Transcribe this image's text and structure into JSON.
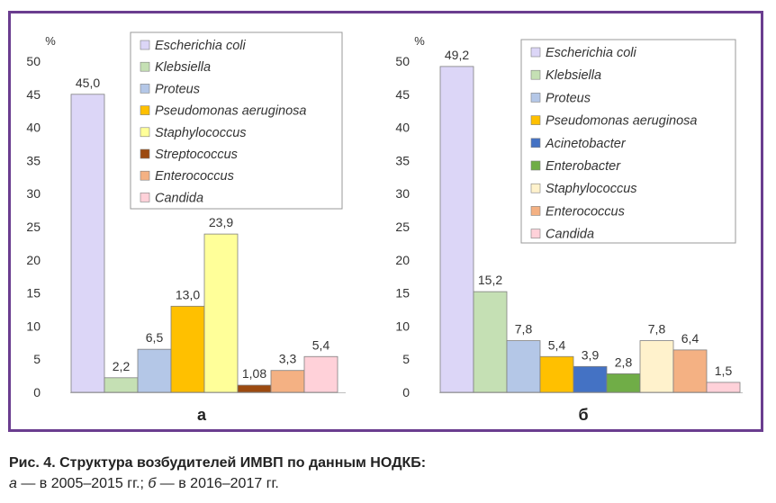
{
  "chart_data": [
    {
      "type": "bar",
      "panel_label": "а",
      "ylabel": "%",
      "ylim": [
        0,
        50
      ],
      "yticks": [
        0,
        5,
        10,
        15,
        20,
        25,
        30,
        35,
        40,
        45,
        50
      ],
      "legend": "top-right",
      "grid": false,
      "categories": [
        "Escherichia coli",
        "Klebsiella",
        "Proteus",
        "Pseudomonas aeruginosa",
        "Staphylococcus",
        "Streptococcus",
        "Enterococcus",
        "Candida"
      ],
      "values": [
        45.0,
        2.2,
        6.5,
        13.0,
        23.9,
        1.08,
        3.3,
        5.4
      ],
      "value_labels": [
        "45,0",
        "2,2",
        "6,5",
        "13,0",
        "23,9",
        "1,08",
        "3,3",
        "5,4"
      ],
      "colors": [
        "#dcd6f7",
        "#c5e0b4",
        "#b4c7e7",
        "#ffc000",
        "#ffff99",
        "#9c4a10",
        "#f4b183",
        "#ffd1d9"
      ]
    },
    {
      "type": "bar",
      "panel_label": "б",
      "ylabel": "%",
      "ylim": [
        0,
        50
      ],
      "yticks": [
        0,
        5,
        10,
        15,
        20,
        25,
        30,
        35,
        40,
        45,
        50
      ],
      "legend": "top-right",
      "grid": false,
      "categories": [
        "Escherichia coli",
        "Klebsiella",
        "Proteus",
        "Pseudomonas aeruginosa",
        "Acinetobacter",
        "Enterobacter",
        "Staphylococcus",
        "Enterococcus",
        "Candida"
      ],
      "values": [
        49.2,
        15.2,
        7.8,
        5.4,
        3.9,
        2.8,
        7.8,
        6.4,
        1.5
      ],
      "value_labels": [
        "49,2",
        "15,2",
        "7,8",
        "5,4",
        "3,9",
        "2,8",
        "7,8",
        "6,4",
        "1,5"
      ],
      "colors": [
        "#dcd6f7",
        "#c5e0b4",
        "#b4c7e7",
        "#ffc000",
        "#4472c4",
        "#70ad47",
        "#fff2cc",
        "#f4b183",
        "#ffd1d9"
      ]
    }
  ],
  "caption": {
    "title": "Рис. 4. Структура возбудителей ИМВП по данным НОДКБ:",
    "sub_a_letter": "а",
    "sub_a_text": " — в 2005–2015 гг.; ",
    "sub_b_letter": "б",
    "sub_b_text": " — в 2016–2017 гг."
  }
}
